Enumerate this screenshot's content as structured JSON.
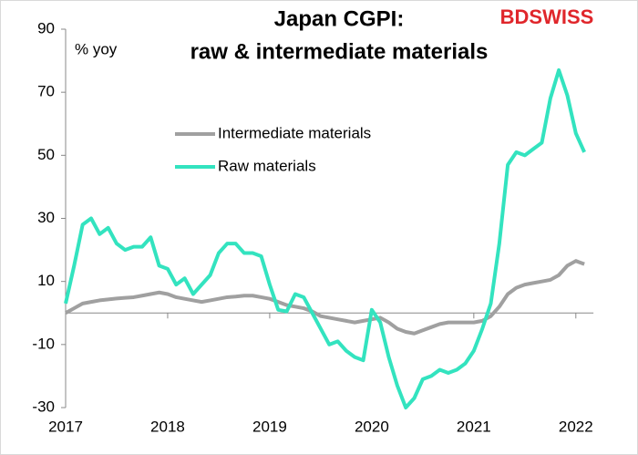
{
  "chart_data": {
    "type": "line",
    "title": [
      "Japan CGPI:",
      "raw & intermediate materials"
    ],
    "logo": "BDSWISS",
    "y_label": "% yoy",
    "categories": [
      "2017",
      null,
      null,
      null,
      null,
      null,
      null,
      null,
      null,
      null,
      null,
      null,
      "2018",
      null,
      null,
      null,
      null,
      null,
      null,
      null,
      null,
      null,
      null,
      null,
      "2019",
      null,
      null,
      null,
      null,
      null,
      null,
      null,
      null,
      null,
      null,
      null,
      "2020",
      null,
      null,
      null,
      null,
      null,
      null,
      null,
      null,
      null,
      null,
      null,
      "2021",
      null,
      null,
      null,
      null,
      null,
      null,
      null,
      null,
      null,
      null,
      null,
      "2022",
      null
    ],
    "series": [
      {
        "name": "Intermediate materials",
        "color": "#a0a0a0",
        "values": [
          0,
          1.5,
          3,
          3.5,
          4,
          4.3,
          4.6,
          4.8,
          5,
          5.5,
          6,
          6.5,
          6,
          5,
          4.5,
          4,
          3.5,
          4,
          4.5,
          5,
          5.2,
          5.5,
          5.5,
          5,
          4.5,
          3.5,
          2.5,
          2,
          1.5,
          0.5,
          -1,
          -1.5,
          -2,
          -2.5,
          -3,
          -2.5,
          -2,
          -1.5,
          -3,
          -5,
          -6,
          -6.5,
          -5.5,
          -4.5,
          -3.5,
          -3,
          -3,
          -3,
          -3,
          -2.5,
          -1,
          2,
          6,
          8,
          9,
          9.5,
          10,
          10.5,
          12,
          15,
          16.5,
          15.5
        ]
      },
      {
        "name": "Raw materials",
        "color": "#33e3bf",
        "values": [
          3,
          15,
          28,
          30,
          25,
          27,
          22,
          20,
          21,
          21,
          24,
          15,
          14,
          9,
          11,
          6,
          9,
          12,
          19,
          22,
          22,
          19,
          19,
          18,
          9,
          1,
          0.5,
          6,
          5,
          0,
          -5,
          -10,
          -9,
          -12,
          -14,
          -15,
          1,
          -3,
          -14,
          -23,
          -30,
          -27,
          -21,
          -20,
          -18,
          -19,
          -18,
          -16,
          -12,
          -5,
          3,
          22,
          47,
          51,
          50,
          52,
          54,
          68,
          77,
          69,
          57,
          51
        ]
      }
    ],
    "ylim": [
      -30,
      90
    ],
    "yticks": [
      -30,
      -10,
      10,
      30,
      50,
      70,
      90
    ],
    "grid": false
  }
}
